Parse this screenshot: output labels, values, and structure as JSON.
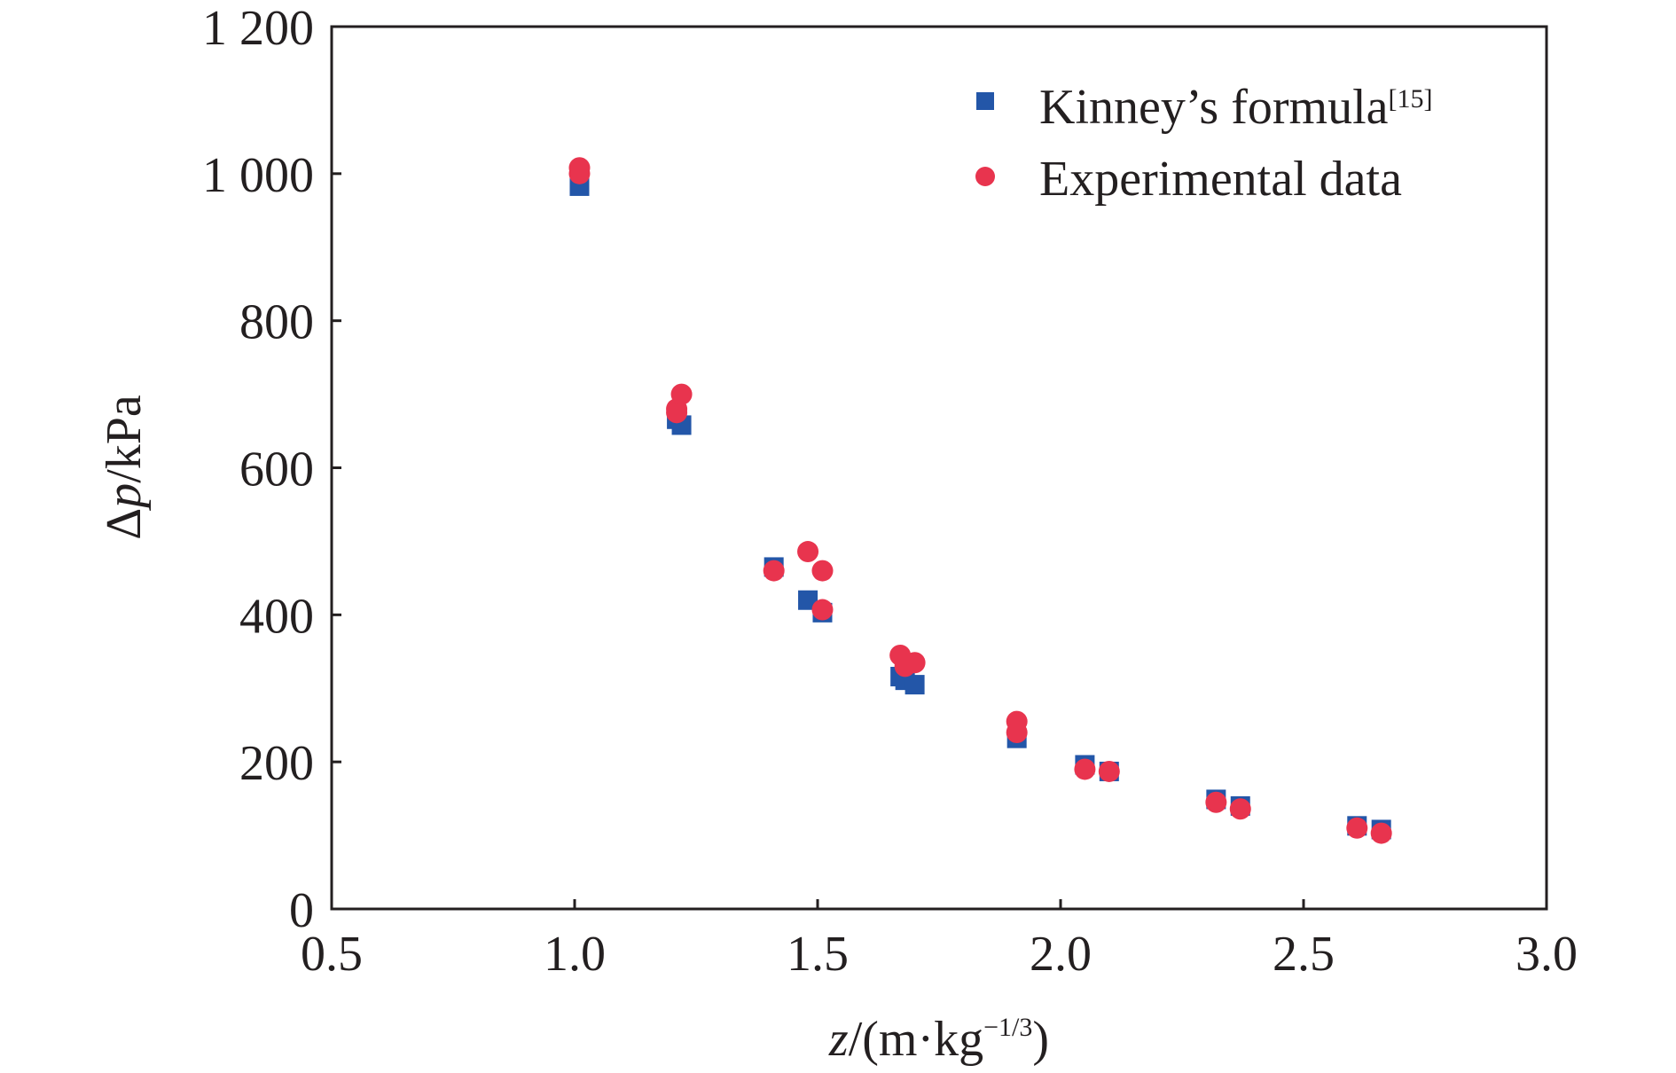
{
  "chart_data": {
    "type": "scatter",
    "title": "",
    "xlabel": {
      "prefix": "z",
      "unit_open": "/(m·kg",
      "exponent": "−1/3",
      "unit_close": ")"
    },
    "ylabel": {
      "prefix": "Δ",
      "var": "p",
      "unit": "/kPa"
    },
    "xlim": [
      0.5,
      3.0
    ],
    "ylim": [
      0,
      1200
    ],
    "xticks": [
      0.5,
      1.0,
      1.5,
      2.0,
      2.5,
      3.0
    ],
    "xtick_labels": [
      "0.5",
      "1.0",
      "1.5",
      "2.0",
      "2.5",
      "3.0"
    ],
    "yticks": [
      0,
      200,
      400,
      600,
      800,
      1000,
      1200
    ],
    "ytick_labels": [
      "0",
      "200",
      "400",
      "600",
      "800",
      "1 000",
      "1 200"
    ],
    "grid": false,
    "legend_position": "top-right",
    "series": [
      {
        "name": "Kinney’s formula",
        "name_sup": "[15]",
        "marker": "square",
        "color": "#2356a8",
        "points": [
          [
            1.01,
            983
          ],
          [
            1.21,
            666
          ],
          [
            1.22,
            658
          ],
          [
            1.41,
            465
          ],
          [
            1.48,
            420
          ],
          [
            1.51,
            403
          ],
          [
            1.67,
            316
          ],
          [
            1.68,
            311
          ],
          [
            1.7,
            305
          ],
          [
            1.91,
            232
          ],
          [
            2.05,
            196
          ],
          [
            2.1,
            187
          ],
          [
            2.32,
            149
          ],
          [
            2.37,
            140
          ],
          [
            2.61,
            113
          ],
          [
            2.66,
            108
          ]
        ]
      },
      {
        "name": "Experimental data",
        "marker": "circle",
        "color": "#e8344e",
        "points": [
          [
            1.01,
            1008
          ],
          [
            1.01,
            1000
          ],
          [
            1.21,
            680
          ],
          [
            1.21,
            675
          ],
          [
            1.22,
            700
          ],
          [
            1.41,
            460
          ],
          [
            1.48,
            486
          ],
          [
            1.51,
            460
          ],
          [
            1.51,
            407
          ],
          [
            1.67,
            345
          ],
          [
            1.68,
            330
          ],
          [
            1.7,
            335
          ],
          [
            1.91,
            255
          ],
          [
            1.91,
            240
          ],
          [
            2.05,
            190
          ],
          [
            2.1,
            187
          ],
          [
            2.32,
            145
          ],
          [
            2.37,
            136
          ],
          [
            2.61,
            110
          ],
          [
            2.66,
            103
          ]
        ]
      }
    ]
  }
}
